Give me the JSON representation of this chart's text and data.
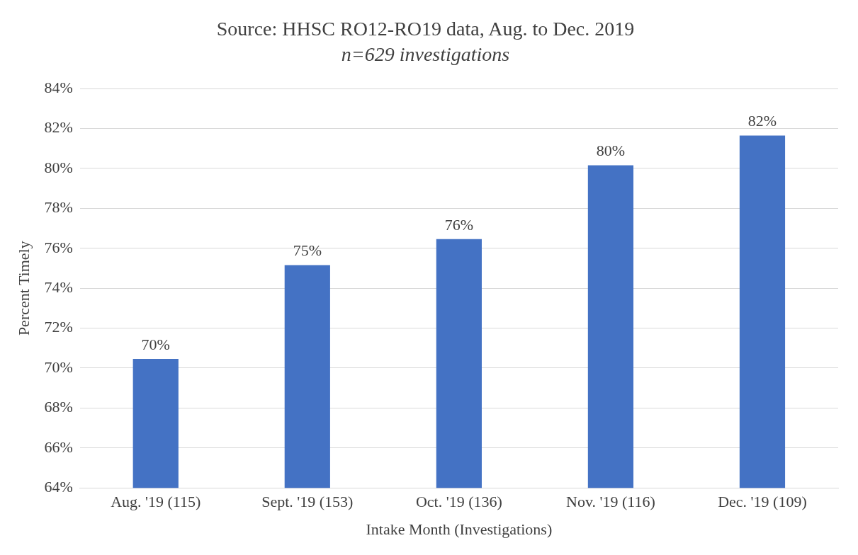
{
  "chart_data": {
    "type": "bar",
    "title": "Source: HHSC RO12-RO19 data, Aug. to Dec. 2019",
    "subtitle": "n=629 investigations",
    "xlabel": "Intake Month (Investigations)",
    "ylabel": "Percent Timely",
    "categories": [
      "Aug. '19 (115)",
      "Sept. '19 (153)",
      "Oct. '19 (136)",
      "Nov. '19 (116)",
      "Dec. '19 (109)"
    ],
    "values": [
      70.46,
      75.16,
      76.46,
      80.16,
      81.65
    ],
    "value_labels": [
      "70%",
      "75%",
      "76%",
      "80%",
      "82%"
    ],
    "color": "#4472c4",
    "ylim": [
      64,
      84
    ],
    "yticks": [
      {
        "value": 64,
        "label": "64%"
      },
      {
        "value": 66,
        "label": "66%"
      },
      {
        "value": 68,
        "label": "68%"
      },
      {
        "value": 70,
        "label": "70%"
      },
      {
        "value": 72,
        "label": "72%"
      },
      {
        "value": 74,
        "label": "74%"
      },
      {
        "value": 76,
        "label": "76%"
      },
      {
        "value": 78,
        "label": "78%"
      },
      {
        "value": 80,
        "label": "80%"
      },
      {
        "value": 82,
        "label": "82%"
      },
      {
        "value": 84,
        "label": "84%"
      }
    ],
    "grid": "y"
  }
}
